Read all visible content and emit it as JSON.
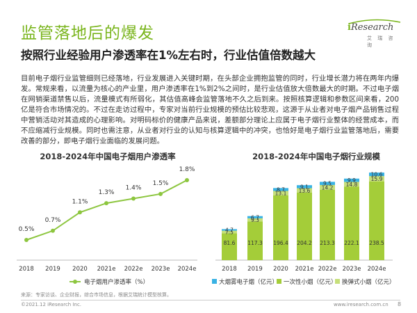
{
  "header": {
    "title": "监管落地后的爆发",
    "subtitle": "按照行业经验用户渗透率在1%左右时，行业估值倍数越大"
  },
  "logo": {
    "brand_prefix": "i",
    "brand_rest": "Research",
    "cn": "艾 瑞 咨 询"
  },
  "body_text": "目前电子烟行业监管细则已经落地，行业发展进入关键时期，在头部企业拥抱监管的同时，行业增长潜力将在两年内爆发。常规来看，以流量为核心的产业里，用户渗透率在1%到2%之间时，是行业估值放大倍数最大的时期。不过电子烟在网销渠道禁售以后，流量模式有所弱化，其估值高峰会监管落地不久之后到来。按照核算逻辑和参数区间来看，200亿是符合市场情况的。不过在走访过程中，专家对当前行业规模的预估比较悲观，这源于从业者对电子烟产品销售过程中营销活动对其造成的心理影响。对明码标价的健康产品来说，差额部分理论上应属于电子烟行业整体的经营成本，而不应缩减行业规模。同时也需注意，从业者对行业的认知与核算逻辑中的冲突，也恰好是电子烟行业监管落地后，需要改善的部分，即电子烟行业面临的发展问题。",
  "chart_data": [
    {
      "type": "line",
      "title": "2018-2024年中国电子烟用户渗透率",
      "categories": [
        "2018",
        "2019",
        "2020",
        "2021e",
        "2022e",
        "2023e",
        "2024e"
      ],
      "values": [
        0.5,
        0.7,
        1.1,
        1.3,
        1.4,
        1.5,
        1.8
      ],
      "value_labels": [
        "0.5%",
        "0.7%",
        "1.1%",
        "1.3%",
        "1.4%",
        "1.5%",
        "1.8%"
      ],
      "legend": "电子烟用户渗透率（%）",
      "color": "#8dc63f"
    },
    {
      "type": "bar",
      "stacked": true,
      "title": "2018-2024年中国电子烟行业规模",
      "categories": [
        "2018",
        "2019",
        "2020",
        "2021e",
        "2022e",
        "2023e",
        "2024e"
      ],
      "series": [
        {
          "name": "一次性小烟（亿元）",
          "values": [
            81.6,
            117.3,
            196.4,
            204.2,
            213.3,
            222.1,
            238.5
          ],
          "color": "#a4cd39"
        },
        {
          "name": "换弹式小烟（亿元）",
          "values": [
            7.5,
            9.3,
            13.1,
            13.6,
            14.2,
            14.8,
            15.9
          ],
          "color": "#c6df7a"
        },
        {
          "name": "大烟雾电子烟（亿元）",
          "values": [
            4.7,
            6.7,
            8.7,
            9.1,
            9.5,
            9.9,
            10.6
          ],
          "color": "#39b2e4"
        }
      ],
      "legend_order": [
        "大烟雾电子烟（亿元）",
        "一次性小烟（亿元）",
        "换弹式小烟（亿元）"
      ]
    }
  ],
  "footer": {
    "source": "来源：专家访谈、企业财报，综合市场信息，根据艾瑞统计模型核算。",
    "copyright": "©2021.12 iResearch Inc.",
    "site": "www.iresearch.com.cn",
    "page": "8"
  }
}
